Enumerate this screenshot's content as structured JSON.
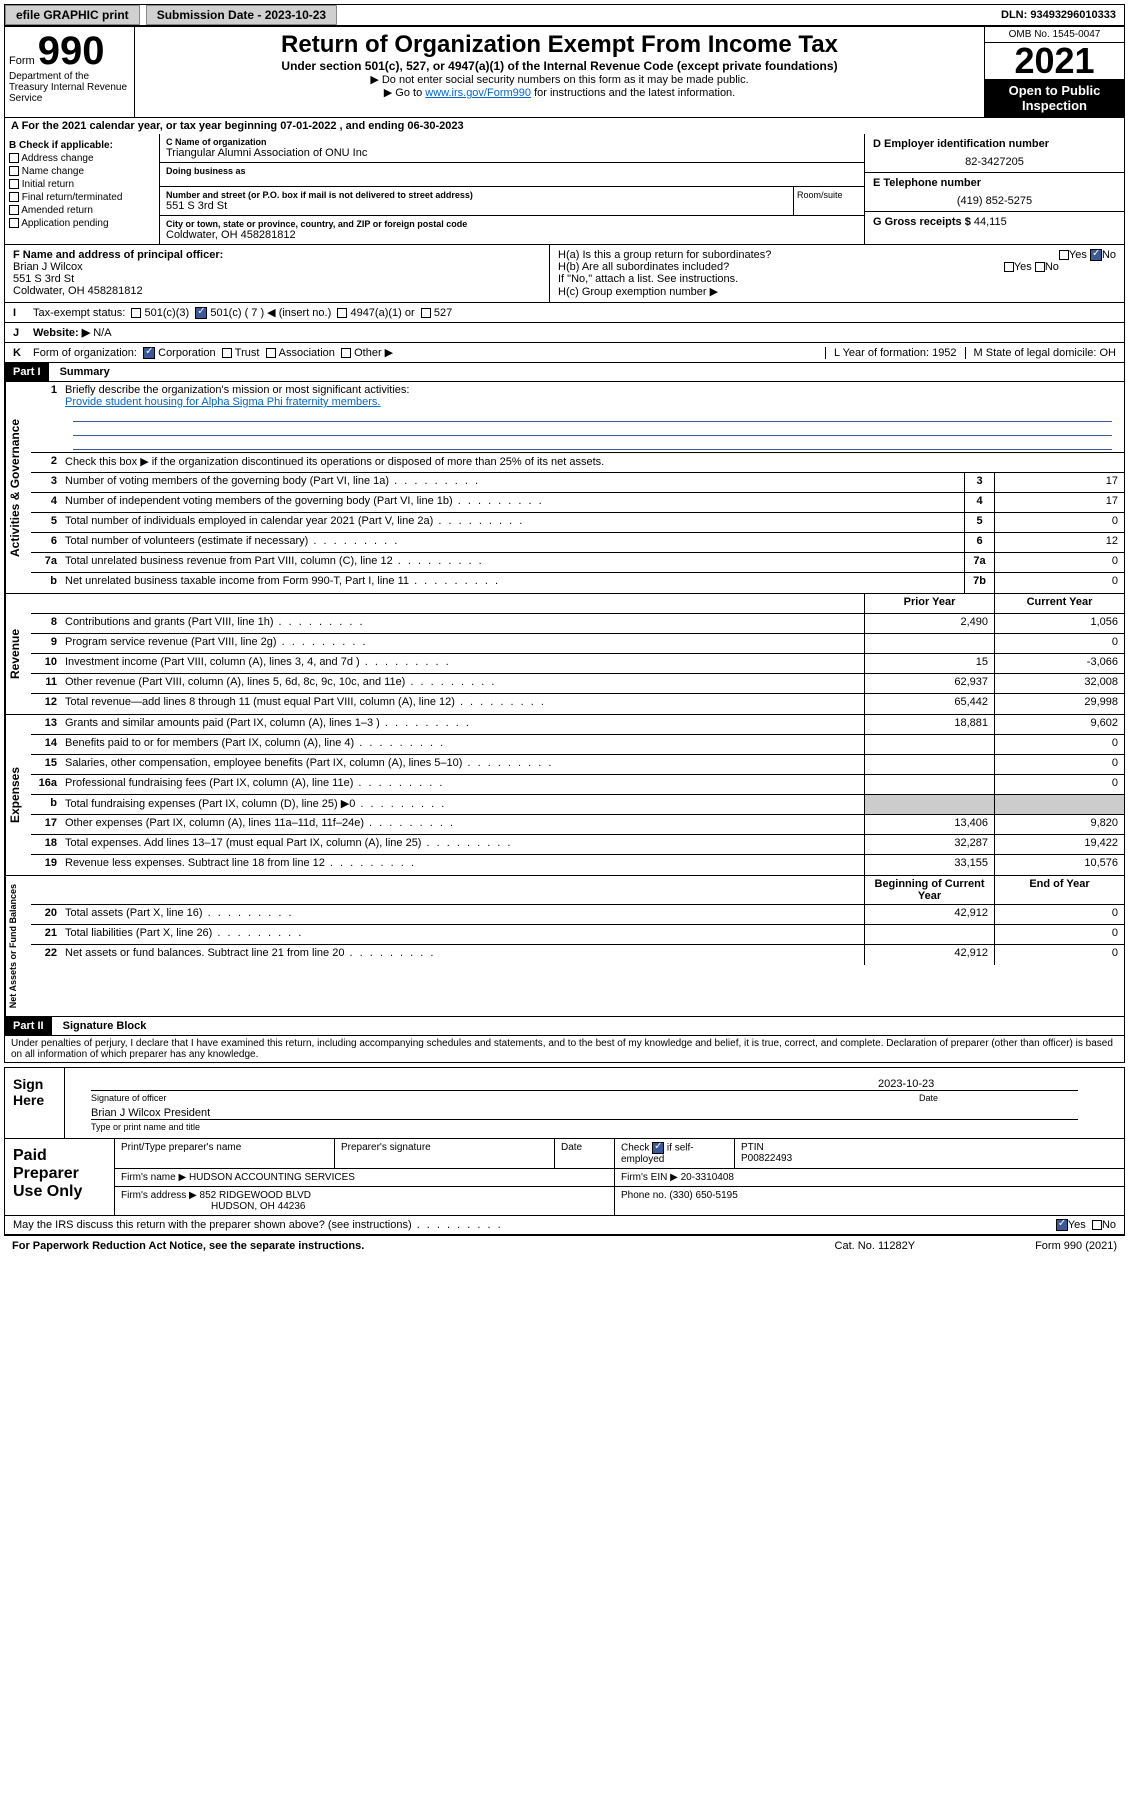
{
  "topbar": {
    "efile": "efile GRAPHIC print",
    "submission": "Submission Date - 2023-10-23",
    "dln": "DLN: 93493296010333"
  },
  "header": {
    "form_label": "Form",
    "form_num": "990",
    "title": "Return of Organization Exempt From Income Tax",
    "sub": "Under section 501(c), 527, or 4947(a)(1) of the Internal Revenue Code (except private foundations)",
    "note1": "▶ Do not enter social security numbers on this form as it may be made public.",
    "note2_a": "▶ Go to ",
    "note2_link": "www.irs.gov/Form990",
    "note2_b": " for instructions and the latest information.",
    "omb": "OMB No. 1545-0047",
    "year": "2021",
    "open": "Open to Public Inspection",
    "dept": "Department of the Treasury Internal Revenue Service"
  },
  "row_a": "A For the 2021 calendar year, or tax year beginning 07-01-2022    , and ending 06-30-2023",
  "col_b": {
    "title": "B Check if applicable:",
    "items": [
      "Address change",
      "Name change",
      "Initial return",
      "Final return/terminated",
      "Amended return",
      "Application pending"
    ]
  },
  "col_c": {
    "name_label": "C Name of organization",
    "name": "Triangular Alumni Association of ONU Inc",
    "dba_label": "Doing business as",
    "addr_label": "Number and street (or P.O. box if mail is not delivered to street address)",
    "room_label": "Room/suite",
    "addr": "551 S 3rd St",
    "city_label": "City or town, state or province, country, and ZIP or foreign postal code",
    "city": "Coldwater, OH  458281812"
  },
  "col_d": {
    "ein_label": "D Employer identification number",
    "ein": "82-3427205",
    "phone_label": "E Telephone number",
    "phone": "(419) 852-5275",
    "gross_label": "G Gross receipts $",
    "gross": "44,115"
  },
  "officer": {
    "f_label": "F  Name and address of principal officer:",
    "name": "Brian J Wilcox",
    "addr1": "551 S 3rd St",
    "addr2": "Coldwater, OH  458281812",
    "ha": "H(a)  Is this a group return for subordinates?",
    "hb": "H(b)  Are all subordinates included?",
    "hb_note": "If \"No,\" attach a list. See instructions.",
    "hc": "H(c)  Group exemption number ▶",
    "yes": "Yes",
    "no": "No"
  },
  "line_i": {
    "lbl": "I",
    "text": "Tax-exempt status:",
    "opts": [
      "501(c)(3)",
      "501(c) ( 7 ) ◀ (insert no.)",
      "4947(a)(1) or",
      "527"
    ]
  },
  "line_j": {
    "lbl": "J",
    "text": "Website: ▶",
    "val": "N/A"
  },
  "line_k": {
    "lbl": "K",
    "text": "Form of organization:",
    "opts": [
      "Corporation",
      "Trust",
      "Association",
      "Other ▶"
    ],
    "l_text": "L Year of formation: 1952",
    "m_text": "M State of legal domicile: OH"
  },
  "part1": {
    "hdr": "Part I",
    "title": "Summary"
  },
  "summary": {
    "q1": "Briefly describe the organization's mission or most significant activities:",
    "mission": "Provide student housing for Alpha Sigma Phi fraternity members.",
    "q2": "Check this box ▶       if the organization discontinued its operations or disposed of more than 25% of its net assets.",
    "rows_gov": [
      {
        "n": "3",
        "d": "Number of voting members of the governing body (Part VI, line 1a)",
        "box": "3",
        "v": "17"
      },
      {
        "n": "4",
        "d": "Number of independent voting members of the governing body (Part VI, line 1b)",
        "box": "4",
        "v": "17"
      },
      {
        "n": "5",
        "d": "Total number of individuals employed in calendar year 2021 (Part V, line 2a)",
        "box": "5",
        "v": "0"
      },
      {
        "n": "6",
        "d": "Total number of volunteers (estimate if necessary)",
        "box": "6",
        "v": "12"
      },
      {
        "n": "7a",
        "d": "Total unrelated business revenue from Part VIII, column (C), line 12",
        "box": "7a",
        "v": "0"
      },
      {
        "n": "b",
        "d": "Net unrelated business taxable income from Form 990-T, Part I, line 11",
        "box": "7b",
        "v": "0"
      }
    ],
    "hdr_prior": "Prior Year",
    "hdr_curr": "Current Year",
    "rows_rev": [
      {
        "n": "8",
        "d": "Contributions and grants (Part VIII, line 1h)",
        "p": "2,490",
        "c": "1,056"
      },
      {
        "n": "9",
        "d": "Program service revenue (Part VIII, line 2g)",
        "p": "",
        "c": "0"
      },
      {
        "n": "10",
        "d": "Investment income (Part VIII, column (A), lines 3, 4, and 7d )",
        "p": "15",
        "c": "-3,066"
      },
      {
        "n": "11",
        "d": "Other revenue (Part VIII, column (A), lines 5, 6d, 8c, 9c, 10c, and 11e)",
        "p": "62,937",
        "c": "32,008"
      },
      {
        "n": "12",
        "d": "Total revenue—add lines 8 through 11 (must equal Part VIII, column (A), line 12)",
        "p": "65,442",
        "c": "29,998"
      }
    ],
    "rows_exp": [
      {
        "n": "13",
        "d": "Grants and similar amounts paid (Part IX, column (A), lines 1–3 )",
        "p": "18,881",
        "c": "9,602"
      },
      {
        "n": "14",
        "d": "Benefits paid to or for members (Part IX, column (A), line 4)",
        "p": "",
        "c": "0"
      },
      {
        "n": "15",
        "d": "Salaries, other compensation, employee benefits (Part IX, column (A), lines 5–10)",
        "p": "",
        "c": "0"
      },
      {
        "n": "16a",
        "d": "Professional fundraising fees (Part IX, column (A), line 11e)",
        "p": "",
        "c": "0"
      },
      {
        "n": "b",
        "d": "Total fundraising expenses (Part IX, column (D), line 25) ▶0",
        "p": "shade",
        "c": "shade"
      },
      {
        "n": "17",
        "d": "Other expenses (Part IX, column (A), lines 11a–11d, 11f–24e)",
        "p": "13,406",
        "c": "9,820"
      },
      {
        "n": "18",
        "d": "Total expenses. Add lines 13–17 (must equal Part IX, column (A), line 25)",
        "p": "32,287",
        "c": "19,422"
      },
      {
        "n": "19",
        "d": "Revenue less expenses. Subtract line 18 from line 12",
        "p": "33,155",
        "c": "10,576"
      }
    ],
    "hdr_beg": "Beginning of Current Year",
    "hdr_end": "End of Year",
    "rows_net": [
      {
        "n": "20",
        "d": "Total assets (Part X, line 16)",
        "p": "42,912",
        "c": "0"
      },
      {
        "n": "21",
        "d": "Total liabilities (Part X, line 26)",
        "p": "",
        "c": "0"
      },
      {
        "n": "22",
        "d": "Net assets or fund balances. Subtract line 21 from line 20",
        "p": "42,912",
        "c": "0"
      }
    ],
    "vtabs": [
      "Activities & Governance",
      "Revenue",
      "Expenses",
      "Net Assets or Fund Balances"
    ]
  },
  "part2": {
    "hdr": "Part II",
    "title": "Signature Block"
  },
  "sig": {
    "decl": "Under penalties of perjury, I declare that I have examined this return, including accompanying schedules and statements, and to the best of my knowledge and belief, it is true, correct, and complete. Declaration of preparer (other than officer) is based on all information of which preparer has any knowledge.",
    "sign_here": "Sign Here",
    "sig_officer": "Signature of officer",
    "date": "Date",
    "date_val": "2023-10-23",
    "name": "Brian J Wilcox  President",
    "type_name": "Type or print name and title"
  },
  "prep": {
    "title": "Paid Preparer Use Only",
    "h1": "Print/Type preparer's name",
    "h2": "Preparer's signature",
    "h3": "Date",
    "h4a": "Check",
    "h4b": "if self-employed",
    "h5": "PTIN",
    "ptin": "P00822493",
    "firm_name_lbl": "Firm's name    ▶",
    "firm_name": "HUDSON ACCOUNTING SERVICES",
    "firm_ein_lbl": "Firm's EIN ▶",
    "firm_ein": "20-3310408",
    "firm_addr_lbl": "Firm's address ▶",
    "firm_addr1": "852 RIDGEWOOD BLVD",
    "firm_addr2": "HUDSON, OH  44236",
    "phone_lbl": "Phone no.",
    "phone": "(330) 650-5195"
  },
  "footer": {
    "discuss": "May the IRS discuss this return with the preparer shown above? (see instructions)",
    "paperwork": "For Paperwork Reduction Act Notice, see the separate instructions.",
    "cat": "Cat. No. 11282Y",
    "form": "Form 990 (2021)",
    "yes": "Yes",
    "no": "No"
  },
  "colors": {
    "black": "#000000",
    "link": "#0066cc",
    "shade": "#cccccc",
    "btn": "#d0d0d0",
    "check": "#3b5998"
  }
}
